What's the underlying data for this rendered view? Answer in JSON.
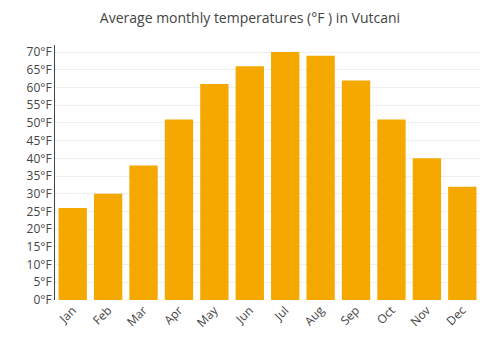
{
  "chart_data": {
    "type": "bar",
    "title": "Average monthly temperatures (°F ) in Vutcani",
    "categories": [
      "Jan",
      "Feb",
      "Mar",
      "Apr",
      "May",
      "Jun",
      "Jul",
      "Aug",
      "Sep",
      "Oct",
      "Nov",
      "Dec"
    ],
    "values": [
      26,
      30,
      38,
      51,
      61,
      66,
      70,
      69,
      62,
      51,
      40,
      32
    ],
    "color": "#F5A800",
    "ylim": [
      0,
      72
    ],
    "yticks": [
      {
        "value": 0,
        "label": "0°F"
      },
      {
        "value": 5,
        "label": "5°F"
      },
      {
        "value": 10,
        "label": "10°F"
      },
      {
        "value": 15,
        "label": "15°F"
      },
      {
        "value": 20,
        "label": "20°F"
      },
      {
        "value": 25,
        "label": "25°F"
      },
      {
        "value": 30,
        "label": "30°F"
      },
      {
        "value": 35,
        "label": "35°F"
      },
      {
        "value": 40,
        "label": "40°F"
      },
      {
        "value": 45,
        "label": "45°F"
      },
      {
        "value": 50,
        "label": "50°F"
      },
      {
        "value": 55,
        "label": "55°F"
      },
      {
        "value": 60,
        "label": "60°F"
      },
      {
        "value": 65,
        "label": "65°F"
      },
      {
        "value": 70,
        "label": "70°F"
      }
    ],
    "grid": true
  }
}
